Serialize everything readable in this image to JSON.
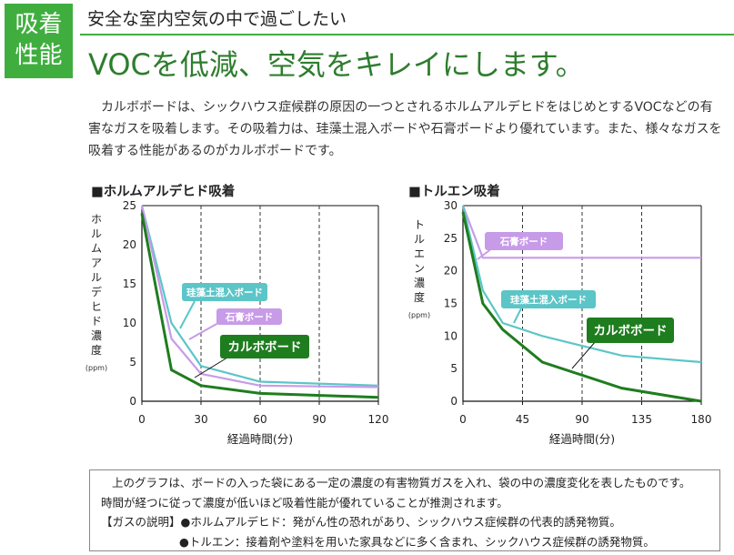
{
  "header": {
    "badge_line1": "吸着",
    "badge_line2": "性能",
    "subtitle": "安全な室内空気の中で過ごしたい",
    "title": "VOCを低減、空気をキレイにします。"
  },
  "intro": "カルボボードは、シックハウス症候群の原因の一つとされるホルムアルデヒドをはじめとするVOCなどの有害なガスを吸着します。その吸着力は、珪藻土混入ボードや石膏ボードより優れています。また、様々なガスを吸着する性能があるのがカルボボードです。",
  "colors": {
    "brand_green": "#3fae3f",
    "karubo": "#1e7d1e",
    "keisoudo": "#5cc5c8",
    "sekkou": "#c79be8"
  },
  "chart_data": [
    {
      "type": "line",
      "title": "■ホルムアルデヒド吸着",
      "ylabel": "ホルムアルデヒド濃度",
      "yunit": "(ppm)",
      "xlabel": "経過時間(分)",
      "xlim": [
        0,
        120
      ],
      "ylim": [
        0,
        25
      ],
      "xticks": [
        "0",
        "30",
        "60",
        "90",
        "120"
      ],
      "yticks": [
        "0",
        "5",
        "10",
        "15",
        "20",
        "25"
      ],
      "series": [
        {
          "name": "珪藻土混入ボード",
          "color": "#5cc5c8",
          "x": [
            0,
            15,
            30,
            60,
            120
          ],
          "y": [
            25,
            10,
            4.5,
            2.5,
            2
          ]
        },
        {
          "name": "石膏ボード",
          "color": "#c79be8",
          "x": [
            0,
            15,
            30,
            60,
            120
          ],
          "y": [
            25,
            8,
            3.5,
            2,
            1.8
          ]
        },
        {
          "name": "カルボボード",
          "color": "#1e7d1e",
          "x": [
            0,
            15,
            30,
            60,
            120
          ],
          "y": [
            24,
            4,
            2,
            1,
            0.5
          ]
        }
      ],
      "labels": [
        {
          "text": "珪藻土混入ボード",
          "style": "keisoudo"
        },
        {
          "text": "石膏ボード",
          "style": "sekkou"
        },
        {
          "text": "カルボボード",
          "style": "karubo"
        }
      ]
    },
    {
      "type": "line",
      "title": "■トルエン吸着",
      "ylabel": "トルエン濃度",
      "yunit": "(ppm)",
      "xlabel": "経過時間(分)",
      "xlim": [
        0,
        180
      ],
      "ylim": [
        0,
        30
      ],
      "xticks": [
        "0",
        "45",
        "90",
        "135",
        "180"
      ],
      "yticks": [
        "0",
        "5",
        "10",
        "15",
        "20",
        "25",
        "30"
      ],
      "series": [
        {
          "name": "石膏ボード",
          "color": "#c79be8",
          "x": [
            0,
            15,
            180
          ],
          "y": [
            30,
            22,
            22
          ]
        },
        {
          "name": "珪藻土混入ボード",
          "color": "#5cc5c8",
          "x": [
            0,
            15,
            30,
            60,
            120,
            180
          ],
          "y": [
            30,
            17,
            12,
            10,
            7,
            6
          ]
        },
        {
          "name": "カルボボード",
          "color": "#1e7d1e",
          "x": [
            0,
            15,
            30,
            60,
            120,
            180
          ],
          "y": [
            29,
            15,
            11,
            6,
            2,
            0
          ]
        }
      ],
      "labels": [
        {
          "text": "石膏ボード",
          "style": "sekkou"
        },
        {
          "text": "珪藻土混入ボード",
          "style": "keisoudo"
        },
        {
          "text": "カルボボード",
          "style": "karubo"
        }
      ]
    }
  ],
  "note": {
    "line1": "上のグラフは、ボードの入った袋にある一定の濃度の有害物質ガスを入れ、袋の中の濃度変化を表したものです。",
    "line2": "時間が経つに従って濃度が低いほど吸着性能が優れていることが推測されます。",
    "line3": "【ガスの説明】●ホルムアルデヒド：発がん性の恐れがあり、シックハウス症候群の代表的誘発物質。",
    "line4": "●トルエン：接着剤や塗料を用いた家具などに多く含まれ、シックハウス症候群の誘発物質。"
  }
}
